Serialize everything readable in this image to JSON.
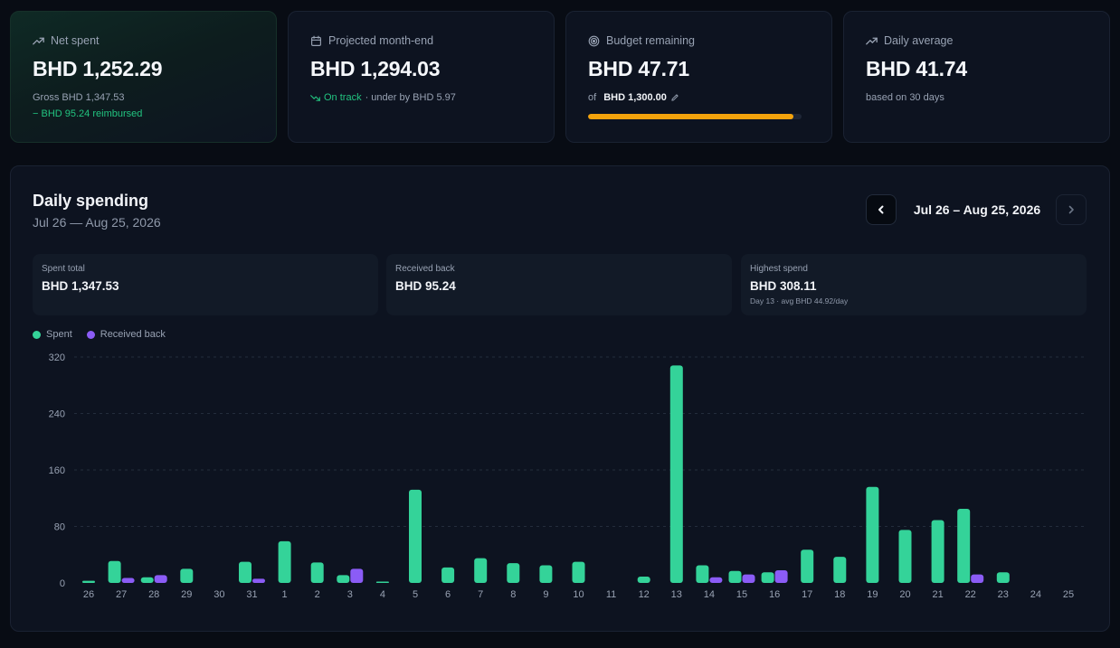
{
  "summary": {
    "net_spent": {
      "label": "Net spent",
      "icon": "trending-up-icon",
      "value": "BHD 1,252.29",
      "gross": "Gross BHD 1,347.53",
      "reimbursed": "− BHD 95.24 reimbursed"
    },
    "projected": {
      "label": "Projected month-end",
      "icon": "calendar-icon",
      "value": "BHD 1,294.03",
      "status": "On track",
      "note": "· under by BHD 5.97"
    },
    "budget": {
      "label": "Budget remaining",
      "icon": "target-icon",
      "value": "BHD 47.71",
      "of_label": "of",
      "total": "BHD 1,300.00",
      "used_fraction": 0.963
    },
    "daily_average": {
      "label": "Daily average",
      "icon": "trending-up-icon",
      "value": "BHD 41.74",
      "note": "based on 30 days"
    }
  },
  "panel": {
    "title": "Daily spending",
    "subtitle": "Jul 26 — Aug 25, 2026",
    "range_label": "Jul 26 – Aug 25, 2026"
  },
  "stats": {
    "spent": {
      "label": "Spent total",
      "value": "BHD 1,347.53"
    },
    "received": {
      "label": "Received back",
      "value": "BHD 95.24"
    },
    "highest": {
      "label": "Highest spend",
      "value": "BHD 308.11",
      "note": "Day 13 · avg BHD 44.92/day"
    }
  },
  "legend": {
    "spent": "Spent",
    "received": "Received back"
  },
  "colors": {
    "spent": "#34d399",
    "received": "#8b5cf6",
    "accent": "#22c480",
    "budget": "#f4a30c"
  },
  "chart_data": {
    "type": "bar",
    "categories": [
      "26",
      "27",
      "28",
      "29",
      "30",
      "31",
      "1",
      "2",
      "3",
      "4",
      "5",
      "6",
      "7",
      "8",
      "9",
      "10",
      "11",
      "12",
      "13",
      "14",
      "15",
      "16",
      "17",
      "18",
      "19",
      "20",
      "21",
      "22",
      "23",
      "24",
      "25"
    ],
    "series": [
      {
        "name": "Spent",
        "values": [
          3,
          31,
          8,
          20,
          0,
          30,
          59,
          29,
          11,
          1,
          132,
          22,
          35,
          28,
          25,
          30,
          0,
          9,
          308,
          25,
          17,
          15,
          47,
          37,
          136,
          75,
          89,
          105,
          15,
          0,
          0
        ]
      },
      {
        "name": "Received back",
        "values": [
          0,
          7,
          11,
          0,
          0,
          6,
          0,
          0,
          20,
          0,
          0,
          0,
          0,
          0,
          0,
          0,
          0,
          0,
          0,
          8,
          12,
          18,
          0,
          0,
          0,
          0,
          0,
          12,
          0,
          0,
          0
        ]
      }
    ],
    "yticks": [
      0,
      80,
      160,
      240,
      320
    ],
    "ylim": [
      0,
      320
    ],
    "grid": true,
    "legend_position": "top-left"
  }
}
